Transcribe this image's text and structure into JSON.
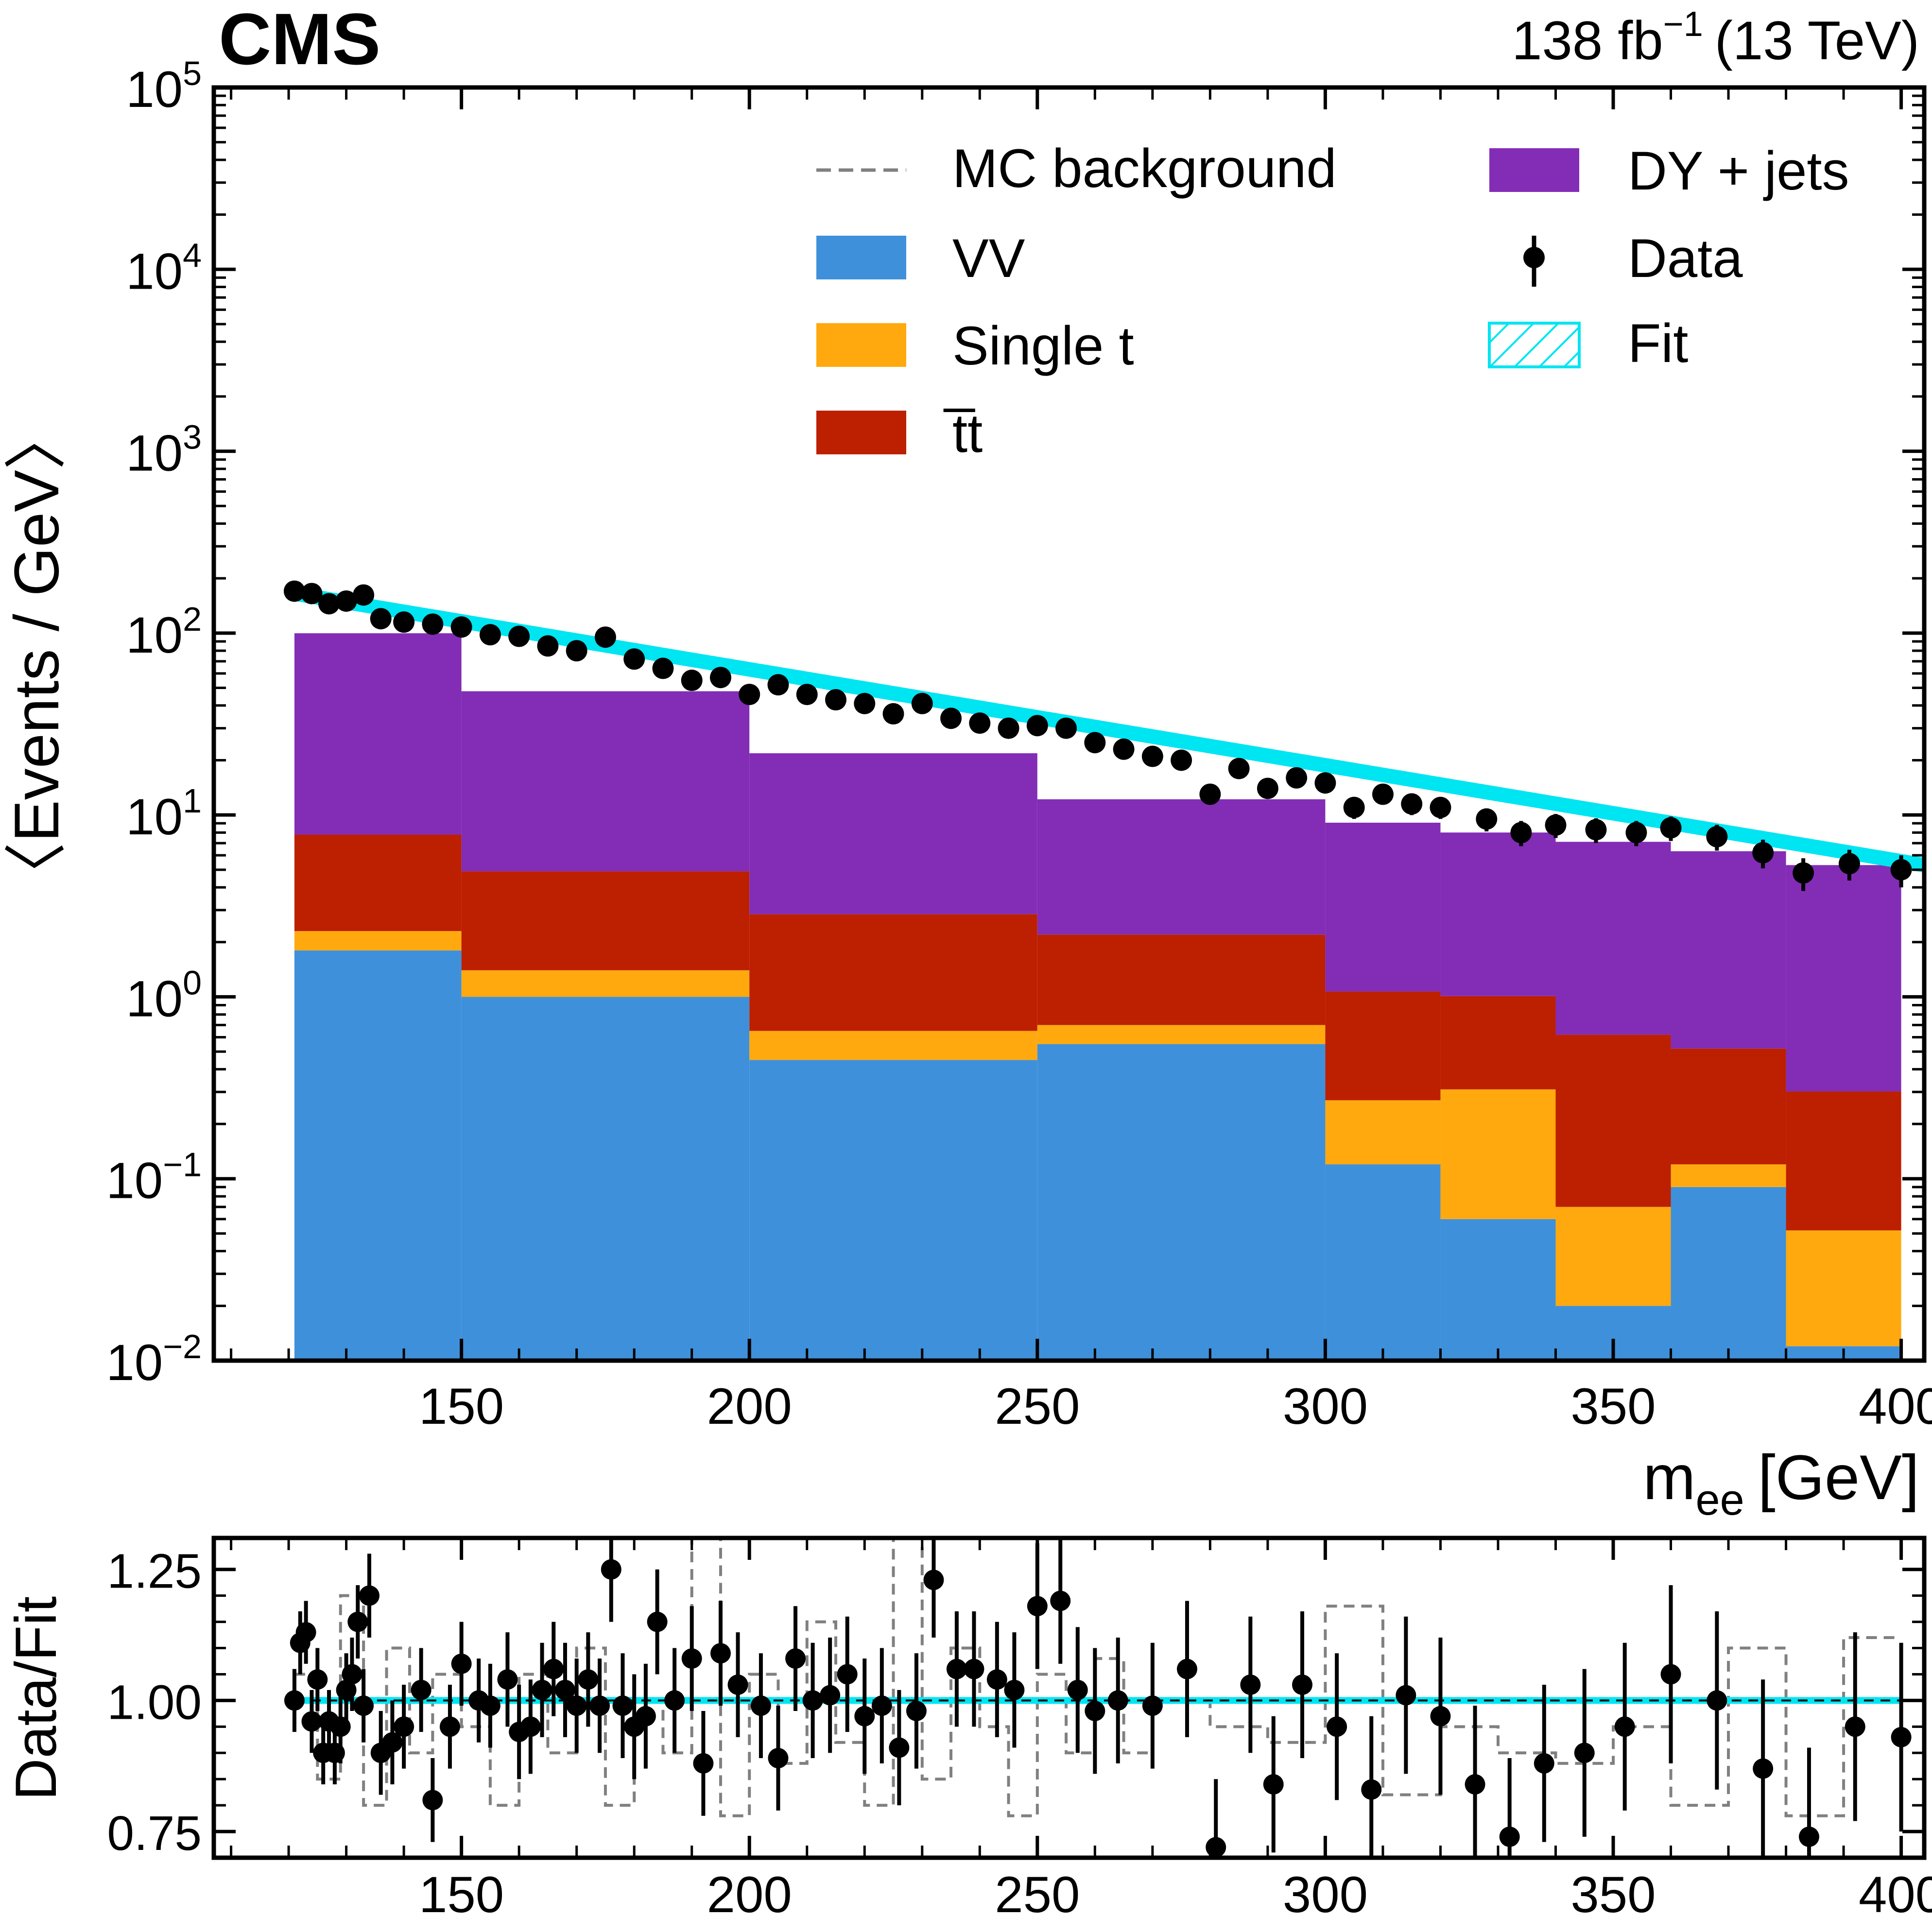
{
  "header": {
    "experiment": "CMS",
    "lumi_label": "138 fb",
    "lumi_exponent": "−1",
    "energy_label": "(13 TeV)"
  },
  "colors": {
    "vv": "#3f90da",
    "single_t": "#ffa90e",
    "ttbar": "#bd1f01",
    "dy": "#832db6",
    "fit": "#00e5f2",
    "mc_background": "#808080",
    "data": "#000000"
  },
  "chart_data": [
    {
      "type": "bar",
      "panel": "main",
      "stacked": true,
      "log_y": true,
      "xlabel": "m",
      "xlabel_subscript": "ee",
      "xlabel_unit": "[GeV]",
      "ylabel": "〈Events / GeV〉",
      "xlim": [
        107,
        404
      ],
      "ylim": [
        0.01,
        100000
      ],
      "x_ticks": [
        150,
        200,
        250,
        300,
        350,
        400
      ],
      "y_ticks": [
        {
          "value": 0.01,
          "base": "10",
          "exp": "−2"
        },
        {
          "value": 0.1,
          "base": "10",
          "exp": "−1"
        },
        {
          "value": 1,
          "base": "10",
          "exp": "0"
        },
        {
          "value": 10,
          "base": "10",
          "exp": "1"
        },
        {
          "value": 100,
          "base": "10",
          "exp": "2"
        },
        {
          "value": 1000,
          "base": "10",
          "exp": "3"
        },
        {
          "value": 10000,
          "base": "10",
          "exp": "4"
        },
        {
          "value": 100000,
          "base": "10",
          "exp": "5"
        }
      ],
      "legend": {
        "position": "top-right",
        "entries": [
          {
            "label": "MC background",
            "style": "dashed-line",
            "color_key": "mc_background"
          },
          {
            "label": "VV",
            "style": "fill",
            "color_key": "vv"
          },
          {
            "label": "Single t",
            "style": "fill",
            "color_key": "single_t"
          },
          {
            "label": "t̅t",
            "style": "fill",
            "color_key": "ttbar"
          },
          {
            "label": "DY + jets",
            "style": "fill",
            "color_key": "dy"
          },
          {
            "label": "Data",
            "style": "marker",
            "color_key": "data"
          },
          {
            "label": "Fit",
            "style": "hatched",
            "color_key": "fit"
          }
        ]
      },
      "bin_edges": [
        121,
        150,
        200,
        250,
        300,
        320,
        340,
        360,
        380,
        400
      ],
      "series": [
        {
          "name": "VV",
          "values": [
            1.8,
            1.0,
            0.45,
            0.55,
            0.12,
            0.06,
            0.02,
            0.09,
            0.012
          ]
        },
        {
          "name": "Single t",
          "values": [
            0.5,
            0.4,
            0.2,
            0.15,
            0.15,
            0.25,
            0.05,
            0.03,
            0.04
          ]
        },
        {
          "name": "t̅t",
          "values": [
            5.5,
            3.5,
            2.2,
            1.5,
            0.8,
            0.7,
            0.55,
            0.4,
            0.25
          ]
        },
        {
          "name": "DY + jets",
          "values": [
            92,
            43,
            19,
            10,
            8,
            7,
            6.5,
            5.8,
            5.0
          ]
        }
      ],
      "data_points": {
        "x": [
          121,
          124,
          127,
          130,
          133,
          136,
          140,
          145,
          150,
          155,
          160,
          165,
          170,
          175,
          180,
          185,
          190,
          195,
          200,
          205,
          210,
          215,
          220,
          225,
          230,
          235,
          240,
          245,
          250,
          255,
          260,
          265,
          270,
          275,
          280,
          285,
          290,
          295,
          300,
          305,
          310,
          315,
          320,
          328,
          334,
          340,
          347,
          354,
          360,
          368,
          376,
          383,
          391,
          400
        ],
        "y": [
          170,
          165,
          145,
          150,
          162,
          120,
          115,
          112,
          108,
          98,
          96,
          85,
          80,
          95,
          72,
          64,
          55,
          57,
          46,
          52,
          46,
          43,
          41,
          36,
          41,
          34,
          32,
          30,
          31,
          30,
          25,
          23,
          21,
          20,
          13,
          18,
          14,
          16,
          15,
          11,
          13,
          11.5,
          11,
          9.5,
          8,
          8.8,
          8.3,
          8,
          8.5,
          7.6,
          6.2,
          4.8,
          5.4,
          5.0
        ]
      },
      "fit": {
        "x_range": [
          121,
          404
        ],
        "y_at_121": 165,
        "y_at_404": 5.3
      }
    },
    {
      "type": "scatter",
      "panel": "ratio",
      "xlabel": "",
      "ylabel": "Data/Fit",
      "xlim": [
        107,
        404
      ],
      "ylim": [
        0.7,
        1.31
      ],
      "x_ticks": [
        150,
        200,
        250,
        300,
        350,
        400
      ],
      "y_ticks": [
        "0.75",
        "1.00",
        "1.25"
      ],
      "reference_line": 1.0,
      "data_points": {
        "x": [
          121,
          122,
          123,
          124,
          125,
          126,
          127,
          128,
          129,
          130,
          131,
          132,
          133,
          134,
          136,
          138,
          140,
          143,
          145,
          148,
          150,
          153,
          155,
          158,
          160,
          162,
          164,
          166,
          168,
          170,
          172,
          174,
          176,
          178,
          180,
          182,
          184,
          187,
          190,
          192,
          195,
          198,
          202,
          205,
          208,
          211,
          214,
          217,
          220,
          223,
          226,
          229,
          232,
          236,
          239,
          243,
          246,
          250,
          254,
          257,
          260,
          264,
          270,
          276,
          281,
          287,
          291,
          296,
          302,
          308,
          314,
          320,
          326,
          332,
          338,
          345,
          352,
          360,
          368,
          376,
          384,
          392,
          400
        ],
        "y": [
          1.0,
          1.11,
          1.13,
          0.96,
          1.04,
          0.9,
          0.96,
          0.9,
          0.95,
          1.02,
          1.05,
          1.15,
          0.99,
          1.2,
          0.9,
          0.92,
          0.95,
          1.02,
          0.81,
          0.95,
          1.07,
          1.0,
          0.99,
          1.04,
          0.94,
          0.95,
          1.02,
          1.06,
          1.02,
          0.99,
          1.04,
          0.99,
          1.25,
          0.99,
          0.95,
          0.97,
          1.15,
          1.0,
          1.08,
          0.88,
          1.09,
          1.03,
          0.99,
          0.89,
          1.08,
          1.0,
          1.01,
          1.05,
          0.97,
          0.99,
          0.91,
          0.98,
          1.23,
          1.06,
          1.06,
          1.04,
          1.02,
          1.18,
          1.19,
          1.02,
          0.98,
          1.0,
          0.99,
          1.06,
          0.72,
          1.03,
          0.84,
          1.03,
          0.95,
          0.83,
          1.01,
          0.97,
          0.84,
          0.74,
          0.88,
          0.9,
          0.95,
          1.05,
          1.0,
          0.87,
          0.74,
          0.95,
          0.93
        ],
        "errors": [
          0.06,
          0.06,
          0.06,
          0.06,
          0.06,
          0.06,
          0.06,
          0.06,
          0.07,
          0.07,
          0.07,
          0.07,
          0.07,
          0.08,
          0.08,
          0.08,
          0.08,
          0.08,
          0.08,
          0.08,
          0.08,
          0.08,
          0.08,
          0.09,
          0.09,
          0.09,
          0.09,
          0.09,
          0.09,
          0.09,
          0.09,
          0.09,
          0.1,
          0.1,
          0.1,
          0.1,
          0.1,
          0.1,
          0.1,
          0.1,
          0.1,
          0.1,
          0.1,
          0.1,
          0.1,
          0.11,
          0.11,
          0.11,
          0.11,
          0.11,
          0.11,
          0.11,
          0.11,
          0.11,
          0.11,
          0.11,
          0.11,
          0.12,
          0.12,
          0.12,
          0.12,
          0.12,
          0.12,
          0.13,
          0.13,
          0.13,
          0.13,
          0.14,
          0.14,
          0.14,
          0.15,
          0.15,
          0.15,
          0.15,
          0.15,
          0.16,
          0.16,
          0.17,
          0.17,
          0.17,
          0.17,
          0.18,
          0.18
        ]
      },
      "mc_ratio_steps": {
        "x": [
          121,
          125,
          129,
          133,
          137,
          141,
          145,
          150,
          155,
          160,
          165,
          170,
          175,
          180,
          185,
          190,
          195,
          200,
          205,
          210,
          215,
          220,
          225,
          230,
          235,
          240,
          245,
          250,
          255,
          260,
          265,
          270,
          280,
          290,
          300,
          310,
          320,
          330,
          340,
          350,
          360,
          370,
          380,
          390,
          400
        ],
        "y": [
          1.05,
          0.85,
          1.2,
          0.8,
          1.1,
          0.9,
          1.05,
          0.95,
          0.8,
          1.05,
          0.9,
          1.1,
          0.8,
          1.0,
          0.9,
          1.35,
          0.78,
          1.05,
          0.88,
          1.15,
          0.92,
          0.8,
          1.32,
          0.85,
          1.1,
          0.95,
          0.78,
          1.05,
          0.9,
          1.08,
          0.9,
          1.0,
          0.95,
          0.92,
          1.18,
          0.82,
          0.95,
          0.9,
          0.88,
          0.95,
          0.8,
          1.1,
          0.78,
          1.12,
          0.8
        ]
      }
    }
  ]
}
